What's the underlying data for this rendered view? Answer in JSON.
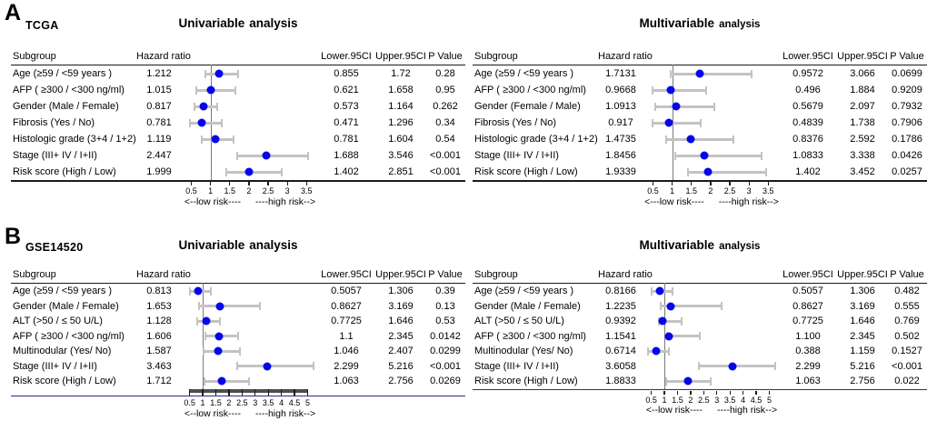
{
  "figure": {
    "section_a_label": "A",
    "section_b_label": "B",
    "columns": {
      "subgroup": "Subgroup",
      "hr": "Hazard ratio",
      "lower": "Lower.95CI",
      "upper": "Upper.95CI",
      "p": "P Value"
    }
  },
  "chart_data": [
    {
      "type": "forest",
      "section": "A",
      "dataset": "TCGA",
      "title_main": "Univariable",
      "title_rest": "analysis",
      "axis": {
        "range": [
          0.25,
          3.8
        ],
        "ref": 1,
        "ticks": [
          0.5,
          1,
          1.5,
          2,
          2.5,
          3,
          3.5
        ],
        "tick_labels": [
          "0.5",
          "1",
          "1.5",
          "2",
          "2.5",
          "3",
          "3.5"
        ],
        "style": "black",
        "low_label": "<--low risk----",
        "high_label": "----high risk-->"
      },
      "rows": [
        {
          "subgroup": "Age (≥59 / <59 years )",
          "hr": "1.212",
          "lower": "0.855",
          "upper": "1.72",
          "p": "0.28"
        },
        {
          "subgroup": "AFP ( ≥300 / <300 ng/ml)",
          "hr": "1.015",
          "lower": "0.621",
          "upper": "1.658",
          "p": "0.95"
        },
        {
          "subgroup": "Gender (Male / Female)",
          "hr": "0.817",
          "lower": "0.573",
          "upper": "1.164",
          "p": "0.262"
        },
        {
          "subgroup": "Fibrosis (Yes / No)",
          "hr": "0.781",
          "lower": "0.471",
          "upper": "1.296",
          "p": "0.34"
        },
        {
          "subgroup": "Histologic grade (3+4 / 1+2)",
          "hr": "1.119",
          "lower": "0.781",
          "upper": "1.604",
          "p": "0.54"
        },
        {
          "subgroup": "Stage (III+ IV / I+II)",
          "hr": "2.447",
          "lower": "1.688",
          "upper": "3.546",
          "p": "<0.001"
        },
        {
          "subgroup": "Risk score (High / Low)",
          "hr": "1.999",
          "lower": "1.402",
          "upper": "2.851",
          "p": "<0.001"
        }
      ]
    },
    {
      "type": "forest",
      "section": "A",
      "dataset": "",
      "title_main": "Multivariable",
      "title_rest": "analysis",
      "axis": {
        "range": [
          0.25,
          3.8
        ],
        "ref": 1,
        "ticks": [
          0.5,
          1,
          1.5,
          2,
          2.5,
          3,
          3.5
        ],
        "tick_labels": [
          "0.5",
          "1",
          "1.5",
          "2",
          "2.5",
          "3",
          "3.5"
        ],
        "style": "black",
        "low_label": "<---low risk----",
        "high_label": "----high risk-->"
      },
      "rows": [
        {
          "subgroup": "Age (≥59 / <59 years )",
          "hr": "1.7131",
          "lower": "0.9572",
          "upper": "3.066",
          "p": "0.0699"
        },
        {
          "subgroup": "AFP ( ≥300 / <300 ng/ml)",
          "hr": "0.9668",
          "lower": "0.496",
          "upper": "1.884",
          "p": "0.9209"
        },
        {
          "subgroup": "Gender (Female / Male)",
          "hr": "1.0913",
          "lower": "0.5679",
          "upper": "2.097",
          "p": "0.7932"
        },
        {
          "subgroup": "Fibrosis (Yes / No)",
          "hr": "0.917",
          "lower": "0.4839",
          "upper": "1.738",
          "p": "0.7906"
        },
        {
          "subgroup": "Histologic grade (3+4 / 1+2)",
          "hr": "1.4735",
          "lower": "0.8376",
          "upper": "2.592",
          "p": "0.1786"
        },
        {
          "subgroup": "Stage (III+ IV / I+II)",
          "hr": "1.8456",
          "lower": "1.0833",
          "upper": "3.338",
          "p": "0.0426"
        },
        {
          "subgroup": "Risk score (High / Low)",
          "hr": "1.9339",
          "lower": "1.402",
          "upper": "3.452",
          "p": "0.0257"
        }
      ]
    },
    {
      "type": "forest",
      "section": "B",
      "dataset": "GSE14520",
      "title_main": "Univariable",
      "title_rest": "analysis",
      "axis": {
        "range": [
          0.2,
          5.4
        ],
        "ref": 1,
        "ticks": [
          0.5,
          1,
          1.5,
          2,
          2.5,
          3,
          3.5,
          4,
          4.5,
          5
        ],
        "tick_labels": [
          "0.5",
          "1",
          "1.5",
          "2",
          "2.5",
          "3",
          "3.5",
          "4",
          "4.5",
          "5"
        ],
        "style": "navy-bar",
        "low_label": "<--low risk----",
        "high_label": "----high risk-->"
      },
      "rows": [
        {
          "subgroup": "Age (≥59 / <59 years )",
          "hr": "0.813",
          "lower": "0.5057",
          "upper": "1.306",
          "p": "0.39"
        },
        {
          "subgroup": "Gender (Male / Female)",
          "hr": "1.653",
          "lower": "0.8627",
          "upper": "3.169",
          "p": "0.13"
        },
        {
          "subgroup": "ALT (>50 / ≤ 50 U/L)",
          "hr": "1.128",
          "lower": "0.7725",
          "upper": "1.646",
          "p": "0.53"
        },
        {
          "subgroup": "AFP ( ≥300 / <300 ng/ml)",
          "hr": "1.606",
          "lower": "1.1",
          "upper": "2.345",
          "p": "0.0142"
        },
        {
          "subgroup": "Multinodular (Yes/ No)",
          "hr": "1.587",
          "lower": "1.046",
          "upper": "2.407",
          "p": "0.0299"
        },
        {
          "subgroup": "Stage (III+ IV / I+II)",
          "hr": "3.463",
          "lower": "2.299",
          "upper": "5.216",
          "p": "<0.001"
        },
        {
          "subgroup": "Risk score (High / Low)",
          "hr": "1.712",
          "lower": "1.063",
          "upper": "2.756",
          "p": "0.0269"
        }
      ]
    },
    {
      "type": "forest",
      "section": "B",
      "dataset": "",
      "title_main": "Multivariable",
      "title_rest": "analysis",
      "axis": {
        "range": [
          0.2,
          5.4
        ],
        "ref": 1,
        "ticks": [
          0.5,
          1,
          1.5,
          2,
          2.5,
          3,
          3.5,
          4,
          4.5,
          5
        ],
        "tick_labels": [
          "0.5",
          "1",
          "1.5",
          "2",
          "2.5",
          "3",
          "3.5",
          "4",
          "4.5",
          "5"
        ],
        "style": "navy",
        "low_label": "<--low risk----",
        "high_label": "----high risk-->"
      },
      "rows": [
        {
          "subgroup": "Age (≥59 / <59 years )",
          "hr": "0.8166",
          "lower": "0.5057",
          "upper": "1.306",
          "p": "0.482"
        },
        {
          "subgroup": "Gender (Male / Female)",
          "hr": "1.2235",
          "lower": "0.8627",
          "upper": "3.169",
          "p": "0.555"
        },
        {
          "subgroup": "ALT (>50 / ≤ 50 U/L)",
          "hr": "0.9392",
          "lower": "0.7725",
          "upper": "1.646",
          "p": "0.769"
        },
        {
          "subgroup": "AFP ( ≥300 / <300 ng/ml)",
          "hr": "1.1541",
          "lower": "1.100",
          "upper": "2.345",
          "p": "0.502"
        },
        {
          "subgroup": "Multinodular (Yes/ No)",
          "hr": "0.6714",
          "lower": "0.388",
          "upper": "1.159",
          "p": "0.1527"
        },
        {
          "subgroup": "Stage (III+ IV / I+II)",
          "hr": "3.6058",
          "lower": "2.299",
          "upper": "5.216",
          "p": "<0.001"
        },
        {
          "subgroup": "Risk score (High / Low)",
          "hr": "1.8833",
          "lower": "1.063",
          "upper": "2.756",
          "p": "0.022"
        }
      ]
    }
  ],
  "style_colors": {
    "dot_blue": "#0505ec",
    "ci_gray": "#c3c3c3",
    "rule_black": "#1a1a1a",
    "rule_navy": "#2c2c9a",
    "reference_line_gray": "#7a7a7a",
    "axis_bar_gray": "#4e4e4e"
  }
}
